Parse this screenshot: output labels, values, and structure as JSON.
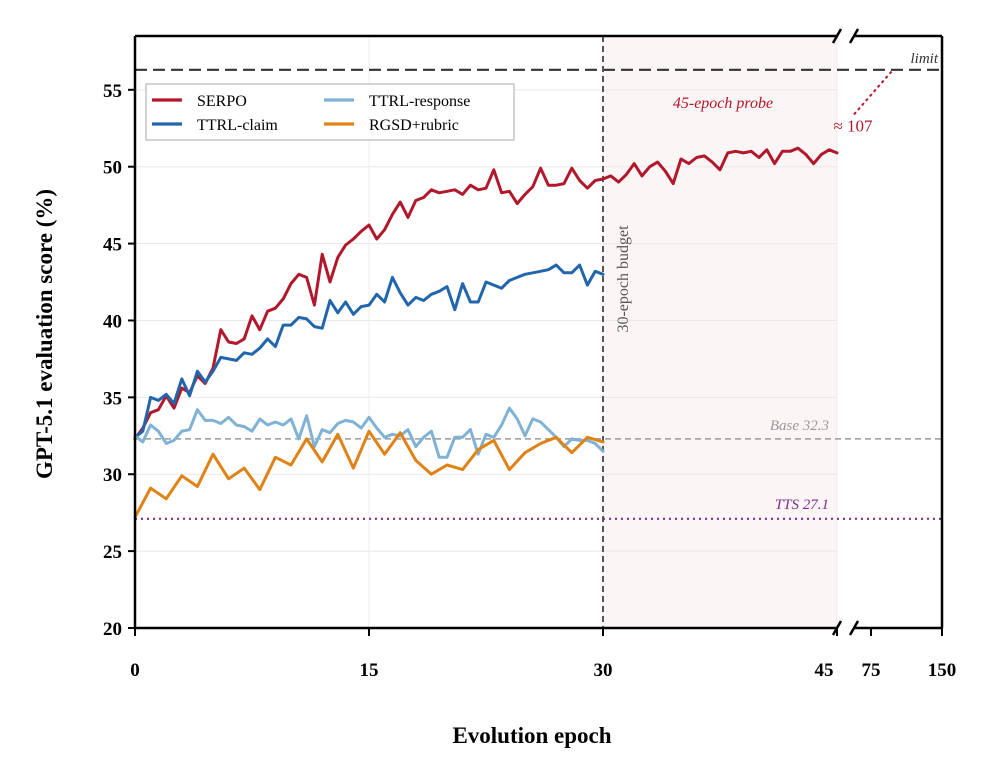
{
  "chart_data": {
    "type": "line",
    "xlabel": "Evolution epoch",
    "ylabel": "GPT-5.1 evaluation score (%)",
    "ylim": [
      20,
      58.5
    ],
    "yticks": [
      20,
      25,
      30,
      35,
      40,
      45,
      50,
      55
    ],
    "xticks_main": [
      0,
      15,
      30,
      45
    ],
    "xticks_extended": [
      75,
      150
    ],
    "x_axis_break": "between 45 and 75",
    "grid": true,
    "legend_position": "top-left",
    "shaded_region": {
      "x_from": 30,
      "x_to": 45,
      "label": "45-epoch probe",
      "color": "#b2182b"
    },
    "vertical_line": {
      "x": 30,
      "label": "30-epoch budget"
    },
    "reference_lines": [
      {
        "name": "limit",
        "y": 56.3,
        "label": "limit",
        "style": "dashed",
        "color": "#333333"
      },
      {
        "name": "base",
        "y": 32.3,
        "label": "Base 32.3",
        "style": "dashed",
        "color": "#999999"
      },
      {
        "name": "tts",
        "y": 27.1,
        "label": "TTS 27.1",
        "style": "dotted",
        "color": "#7b2d8e"
      }
    ],
    "break_annotation": {
      "label": "≈ 107"
    },
    "series": [
      {
        "name": "SERPO",
        "color": "#b2182b",
        "x": [
          0,
          0.5,
          1,
          1.5,
          2,
          2.5,
          3,
          3.5,
          4,
          4.5,
          5,
          5.5,
          6,
          6.5,
          7,
          7.5,
          8,
          8.5,
          9,
          9.5,
          10,
          10.5,
          11,
          11.5,
          12,
          12.5,
          13,
          13.5,
          14,
          14.5,
          15,
          15.5,
          16,
          16.5,
          17,
          17.5,
          18,
          18.5,
          19,
          19.5,
          20,
          20.5,
          21,
          21.5,
          22,
          22.5,
          23,
          23.5,
          24,
          24.5,
          25,
          25.5,
          26,
          26.5,
          27,
          27.5,
          28,
          28.5,
          29,
          29.5,
          30,
          30.5,
          31,
          31.5,
          32,
          32.5,
          33,
          33.5,
          34,
          34.5,
          35,
          35.5,
          36,
          36.5,
          37,
          37.5,
          38,
          38.5,
          39,
          39.5,
          40,
          40.5,
          41,
          41.5,
          42,
          42.5,
          43,
          43.5,
          44,
          44.5,
          45
        ],
        "values": [
          32.3,
          33.0,
          34.0,
          34.2,
          35.1,
          34.3,
          35.6,
          35.3,
          36.4,
          35.9,
          36.9,
          39.4,
          38.6,
          38.5,
          38.8,
          40.3,
          39.4,
          40.6,
          40.8,
          41.4,
          42.4,
          43.0,
          42.8,
          41.0,
          44.3,
          42.5,
          44.1,
          44.9,
          45.3,
          45.8,
          46.2,
          45.3,
          45.9,
          46.9,
          47.7,
          46.7,
          47.8,
          48.0,
          48.5,
          48.3,
          48.4,
          48.5,
          48.2,
          48.8,
          48.5,
          48.6,
          49.8,
          48.3,
          48.4,
          47.6,
          48.2,
          48.7,
          49.9,
          48.8,
          48.8,
          48.9,
          49.9,
          49.1,
          48.6,
          49.1,
          49.2,
          49.4,
          49.0,
          49.5,
          50.2,
          49.4,
          50.0,
          50.3,
          49.7,
          48.9,
          50.5,
          50.2,
          50.6,
          50.7,
          50.3,
          49.8,
          50.9,
          51.0,
          50.9,
          51.0,
          50.6,
          51.1,
          50.2,
          51.0,
          51.0,
          51.2,
          50.8,
          50.2,
          50.8,
          51.1,
          50.9
        ]
      },
      {
        "name": "TTRL-claim",
        "color": "#2166ac",
        "x": [
          0,
          0.5,
          1,
          1.5,
          2,
          2.5,
          3,
          3.5,
          4,
          4.5,
          5,
          5.5,
          6,
          6.5,
          7,
          7.5,
          8,
          8.5,
          9,
          9.5,
          10,
          10.5,
          11,
          11.5,
          12,
          12.5,
          13,
          13.5,
          14,
          14.5,
          15,
          15.5,
          16,
          16.5,
          17,
          17.5,
          18,
          18.5,
          19,
          19.5,
          20,
          20.5,
          21,
          21.5,
          22,
          22.5,
          23,
          23.5,
          24,
          24.5,
          25,
          25.5,
          26,
          26.5,
          27,
          27.5,
          28,
          28.5,
          29,
          29.5,
          30
        ],
        "values": [
          32.4,
          32.8,
          35.0,
          34.8,
          35.2,
          34.6,
          36.2,
          35.1,
          36.7,
          36.0,
          36.7,
          37.6,
          37.5,
          37.4,
          37.9,
          37.8,
          38.2,
          38.8,
          38.3,
          39.7,
          39.7,
          40.2,
          40.1,
          39.6,
          39.5,
          41.3,
          40.5,
          41.2,
          40.4,
          40.9,
          41.0,
          41.7,
          41.2,
          42.8,
          41.8,
          41.0,
          41.5,
          41.3,
          41.7,
          41.9,
          42.2,
          40.7,
          42.4,
          41.2,
          41.2,
          42.5,
          42.3,
          42.1,
          42.6,
          42.8,
          43.0,
          43.1,
          43.2,
          43.3,
          43.6,
          43.1,
          43.1,
          43.6,
          42.3,
          43.2,
          43.0
        ]
      },
      {
        "name": "TTRL-response",
        "color": "#7fb2d5",
        "x": [
          0,
          0.5,
          1,
          1.5,
          2,
          2.5,
          3,
          3.5,
          4,
          4.5,
          5,
          5.5,
          6,
          6.5,
          7,
          7.5,
          8,
          8.5,
          9,
          9.5,
          10,
          10.5,
          11,
          11.5,
          12,
          12.5,
          13,
          13.5,
          14,
          14.5,
          15,
          15.5,
          16,
          16.5,
          17,
          17.5,
          18,
          18.5,
          19,
          19.5,
          20,
          20.5,
          21,
          21.5,
          22,
          22.5,
          23,
          23.5,
          24,
          24.5,
          25,
          25.5,
          26,
          26.5,
          27,
          27.5,
          28,
          28.5,
          29,
          29.5,
          30
        ],
        "values": [
          32.5,
          32.1,
          33.2,
          32.8,
          32.0,
          32.2,
          32.8,
          32.9,
          34.2,
          33.5,
          33.5,
          33.3,
          33.7,
          33.2,
          33.1,
          32.8,
          33.6,
          33.2,
          33.4,
          33.2,
          33.6,
          32.3,
          33.8,
          31.8,
          32.9,
          32.7,
          33.3,
          33.5,
          33.4,
          33.0,
          33.7,
          33.0,
          32.4,
          32.6,
          32.5,
          32.9,
          31.8,
          32.4,
          32.8,
          31.1,
          31.1,
          32.4,
          32.4,
          32.9,
          31.3,
          32.6,
          32.4,
          33.2,
          34.3,
          33.6,
          32.5,
          33.6,
          33.4,
          32.9,
          32.4,
          31.8,
          32.3,
          32.2,
          32.2,
          32.0,
          31.5
        ]
      },
      {
        "name": "RGSD+rubric",
        "color": "#e08214",
        "x": [
          0,
          1,
          2,
          3,
          4,
          5,
          6,
          7,
          8,
          9,
          10,
          11,
          12,
          13,
          14,
          15,
          16,
          17,
          18,
          19,
          20,
          21,
          22,
          23,
          24,
          25,
          26,
          27,
          28,
          29,
          30
        ],
        "values": [
          27.2,
          29.1,
          28.4,
          29.9,
          29.2,
          31.3,
          29.7,
          30.4,
          29.0,
          31.1,
          30.6,
          32.3,
          30.8,
          32.6,
          30.4,
          32.8,
          31.3,
          32.7,
          30.9,
          30.0,
          30.6,
          30.3,
          31.6,
          32.2,
          30.3,
          31.4,
          32.0,
          32.4,
          31.4,
          32.4,
          32.1
        ]
      }
    ]
  }
}
